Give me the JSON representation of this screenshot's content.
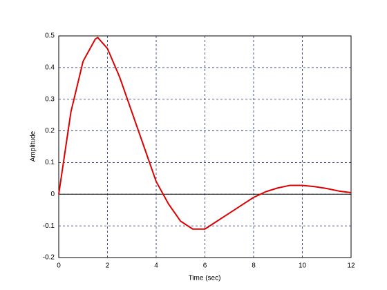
{
  "chart_data": {
    "type": "line",
    "xlabel": "Time (sec)",
    "ylabel": "Amplitude",
    "x": [
      0,
      0.5,
      1,
      1.5,
      1.6,
      2,
      2.5,
      3,
      3.5,
      4,
      4.5,
      5,
      5.5,
      6,
      6.5,
      7,
      7.5,
      8,
      8.5,
      9,
      9.5,
      10,
      10.5,
      11,
      11.5,
      12
    ],
    "series": [
      {
        "color": "#dd0000",
        "values": [
          0,
          0.26,
          0.42,
          0.49,
          0.495,
          0.46,
          0.37,
          0.26,
          0.15,
          0.04,
          -0.03,
          -0.085,
          -0.11,
          -0.11,
          -0.085,
          -0.06,
          -0.035,
          -0.01,
          0.008,
          0.02,
          0.028,
          0.028,
          0.024,
          0.018,
          0.01,
          0.005
        ]
      }
    ],
    "reference_line": 0,
    "xlim": [
      0,
      12
    ],
    "xticks": [
      0,
      2,
      4,
      6,
      8,
      10,
      12
    ],
    "ylim": [
      -0.2,
      0.5
    ],
    "yticks": [
      -0.2,
      -0.1,
      0,
      0.1,
      0.2,
      0.3,
      0.4,
      0.5
    ],
    "grid": true
  }
}
